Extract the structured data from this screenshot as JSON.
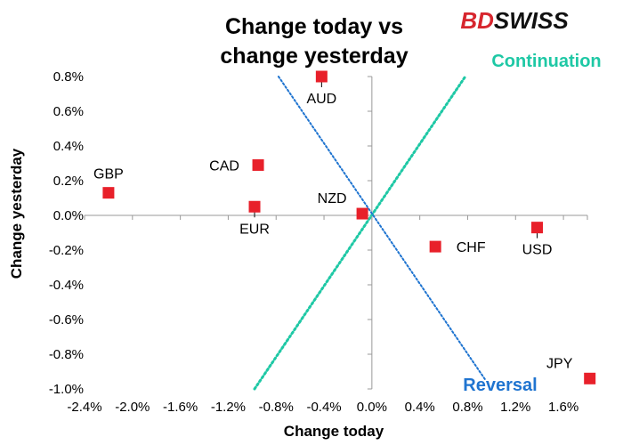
{
  "brand": {
    "logo_text": "BDSWISS",
    "logo_color": "#d7262e"
  },
  "chart_data": {
    "type": "scatter",
    "title_lines": [
      "Change today vs",
      "change yesterday"
    ],
    "xlabel": "Change today",
    "ylabel": "Change yesterday",
    "xlim": [
      -2.4,
      1.8
    ],
    "ylim": [
      -1.0,
      0.8
    ],
    "x_ticks": [
      -2.4,
      -2.0,
      -1.6,
      -1.2,
      -0.8,
      -0.4,
      0.0,
      0.4,
      0.8,
      1.2,
      1.6
    ],
    "x_tick_labels": [
      "-2.4%",
      "-2.0%",
      "-1.6%",
      "-1.2%",
      "-0.8%",
      "-0.4%",
      "0.0%",
      "0.4%",
      "0.8%",
      "1.2%",
      "1.6%"
    ],
    "y_ticks": [
      0.8,
      0.6,
      0.4,
      0.2,
      0.0,
      -0.2,
      -0.4,
      -0.6,
      -0.8,
      -1.0
    ],
    "y_tick_labels": [
      "0.8%",
      "0.6%",
      "0.4%",
      "0.2%",
      "0.0%",
      "-0.2%",
      "-0.4%",
      "-0.6%",
      "-0.8%",
      "-1.0%"
    ],
    "marker_color": "#e8202a",
    "points": [
      {
        "label": "AUD",
        "x": -0.42,
        "y": 0.8,
        "pos": "below"
      },
      {
        "label": "GBP",
        "x": -2.2,
        "y": 0.13,
        "pos": "above"
      },
      {
        "label": "CAD",
        "x": -0.95,
        "y": 0.29,
        "pos": "left"
      },
      {
        "label": "EUR",
        "x": -0.98,
        "y": 0.05,
        "pos": "below"
      },
      {
        "label": "NZD",
        "x": -0.08,
        "y": 0.01,
        "pos": "above-left"
      },
      {
        "label": "CHF",
        "x": 0.53,
        "y": -0.18,
        "pos": "right"
      },
      {
        "label": "USD",
        "x": 1.38,
        "y": -0.07,
        "pos": "below"
      },
      {
        "label": "JPY",
        "x": 1.82,
        "y": -0.94,
        "pos": "above-left"
      }
    ],
    "reference_lines": [
      {
        "name": "Continuation",
        "color": "#1ec8a5",
        "from": [
          -0.98,
          -1.0
        ],
        "to": [
          0.78,
          0.8
        ]
      },
      {
        "name": "Reversal",
        "color": "#1f74d0",
        "from": [
          -0.78,
          0.8
        ],
        "to": [
          0.95,
          -0.95
        ]
      }
    ]
  }
}
